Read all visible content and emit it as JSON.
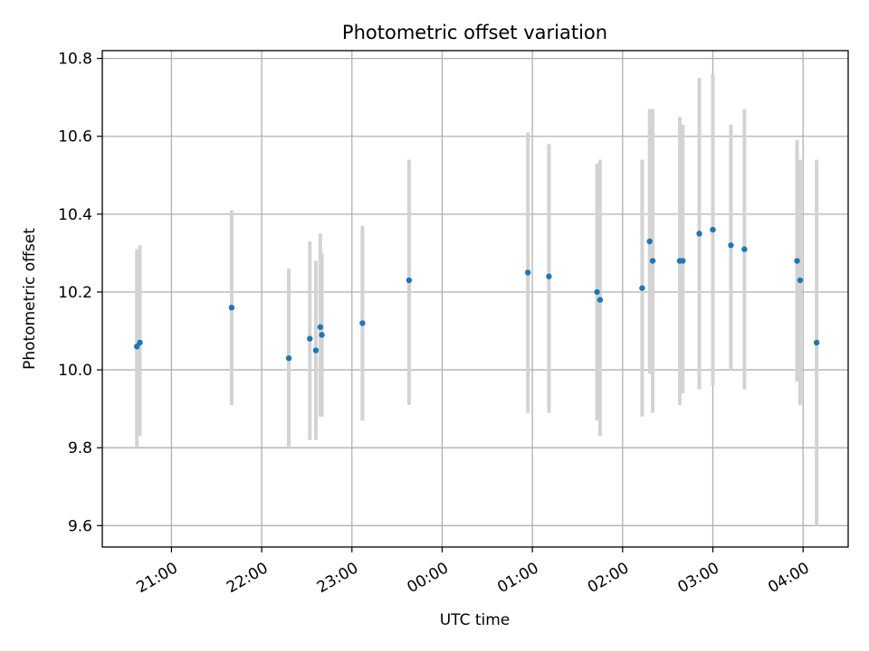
{
  "chart_data": {
    "type": "scatter",
    "title": "Photometric offset variation",
    "xlabel": "UTC time",
    "ylabel": "Photometric offset",
    "grid": true,
    "x_ticks": [
      "21:00",
      "22:00",
      "23:00",
      "00:00",
      "01:00",
      "02:00",
      "03:00",
      "04:00"
    ],
    "y_ticks": [
      "9.6",
      "9.8",
      "10.0",
      "10.2",
      "10.4",
      "10.6",
      "10.8"
    ],
    "x_time_ticks": [
      "21:00",
      "22:00",
      "23:00",
      "24:00",
      "25:00",
      "26:00",
      "27:00",
      "28:00"
    ],
    "y_tick_values": [
      9.6,
      9.8,
      10.0,
      10.2,
      10.4,
      10.6,
      10.8
    ],
    "xlim": [
      "20:14",
      "28:30"
    ],
    "ylim": [
      9.545,
      10.82
    ],
    "colors": {
      "point": "#1f77b4",
      "errorbar": "#d3d3d3",
      "grid": "#b0b0b0"
    },
    "points": [
      {
        "x": "20:37",
        "y": 10.06,
        "ylow": 9.8,
        "yhigh": 10.31
      },
      {
        "x": "20:39",
        "y": 10.07,
        "ylow": 9.83,
        "yhigh": 10.32
      },
      {
        "x": "21:40",
        "y": 10.16,
        "ylow": 9.91,
        "yhigh": 10.41
      },
      {
        "x": "22:18",
        "y": 10.03,
        "ylow": 9.8,
        "yhigh": 10.26
      },
      {
        "x": "22:32",
        "y": 10.08,
        "ylow": 9.82,
        "yhigh": 10.33
      },
      {
        "x": "22:36",
        "y": 10.05,
        "ylow": 9.82,
        "yhigh": 10.28
      },
      {
        "x": "22:39",
        "y": 10.11,
        "ylow": 9.88,
        "yhigh": 10.35
      },
      {
        "x": "22:40",
        "y": 10.09,
        "ylow": 9.88,
        "yhigh": 10.3
      },
      {
        "x": "23:07",
        "y": 10.12,
        "ylow": 9.87,
        "yhigh": 10.37
      },
      {
        "x": "23:38",
        "y": 10.23,
        "ylow": 9.91,
        "yhigh": 10.54
      },
      {
        "x": "24:57",
        "y": 10.25,
        "ylow": 9.89,
        "yhigh": 10.61
      },
      {
        "x": "25:11",
        "y": 10.24,
        "ylow": 9.89,
        "yhigh": 10.58
      },
      {
        "x": "25:43",
        "y": 10.2,
        "ylow": 9.87,
        "yhigh": 10.53
      },
      {
        "x": "25:45",
        "y": 10.18,
        "ylow": 9.83,
        "yhigh": 10.54
      },
      {
        "x": "26:13",
        "y": 10.21,
        "ylow": 9.88,
        "yhigh": 10.54
      },
      {
        "x": "26:18",
        "y": 10.33,
        "ylow": 9.99,
        "yhigh": 10.67
      },
      {
        "x": "26:20",
        "y": 10.28,
        "ylow": 9.89,
        "yhigh": 10.67
      },
      {
        "x": "26:38",
        "y": 10.28,
        "ylow": 9.91,
        "yhigh": 10.65
      },
      {
        "x": "26:40",
        "y": 10.28,
        "ylow": 9.94,
        "yhigh": 10.63
      },
      {
        "x": "26:51",
        "y": 10.35,
        "ylow": 9.95,
        "yhigh": 10.75
      },
      {
        "x": "27:00",
        "y": 10.36,
        "ylow": 9.96,
        "yhigh": 10.76
      },
      {
        "x": "27:12",
        "y": 10.32,
        "ylow": 10.0,
        "yhigh": 10.63
      },
      {
        "x": "27:21",
        "y": 10.31,
        "ylow": 9.95,
        "yhigh": 10.67
      },
      {
        "x": "27:56",
        "y": 10.28,
        "ylow": 9.97,
        "yhigh": 10.59
      },
      {
        "x": "27:58",
        "y": 10.23,
        "ylow": 9.91,
        "yhigh": 10.54
      },
      {
        "x": "28:09",
        "y": 10.07,
        "ylow": 9.6,
        "yhigh": 10.54
      }
    ]
  }
}
